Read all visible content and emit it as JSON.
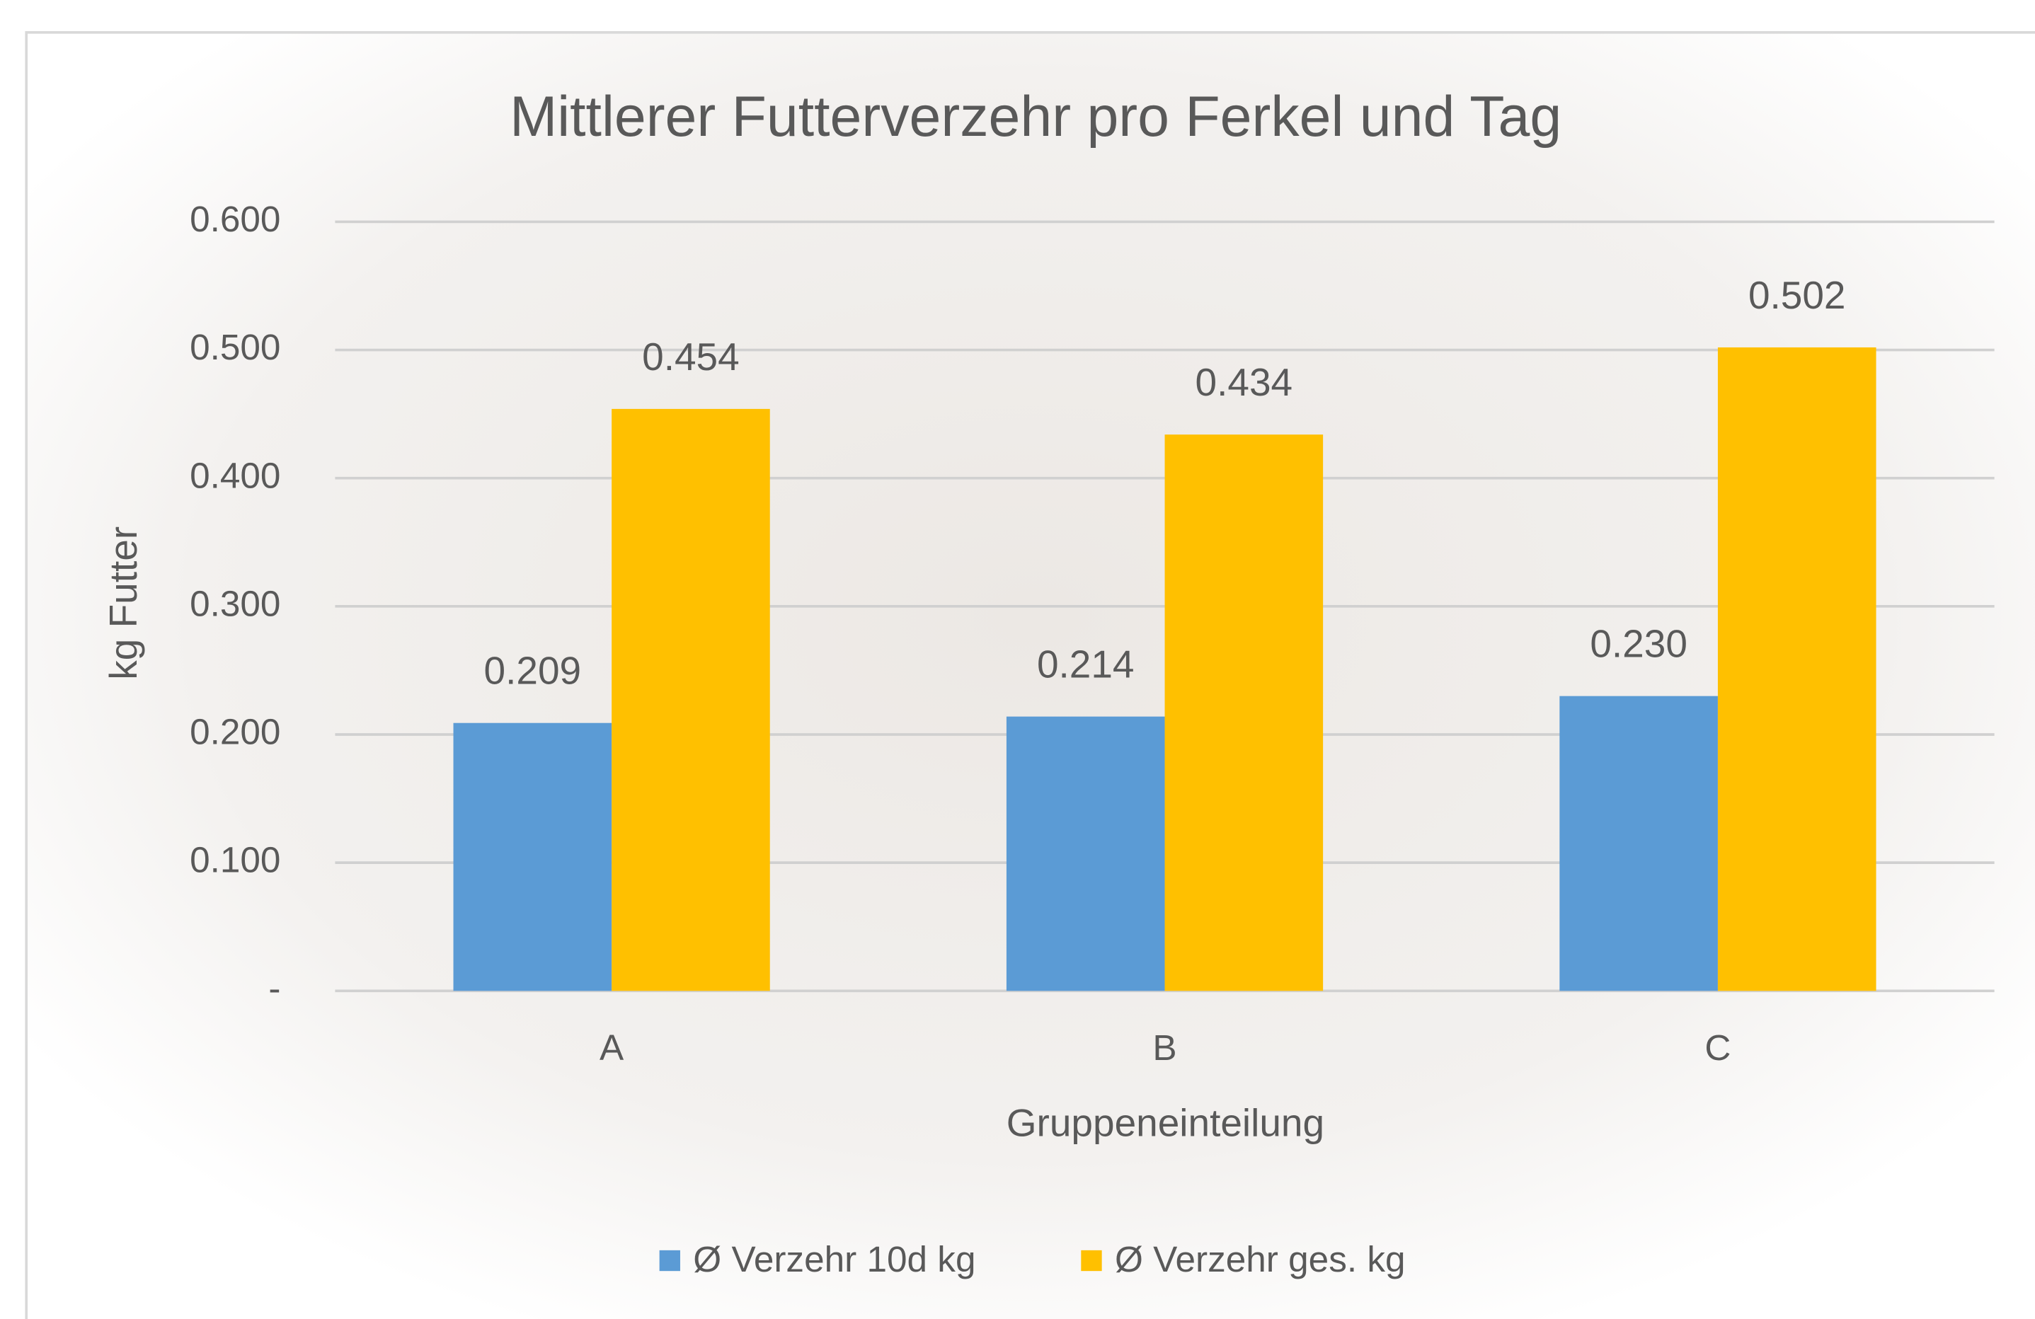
{
  "chart_data": {
    "type": "bar",
    "title": "Mittlerer Futterverzehr pro Ferkel und Tag",
    "x_label": "Gruppeneinteilung",
    "y_label": "kg Futter",
    "categories": [
      "A",
      "B",
      "C"
    ],
    "series": [
      {
        "name": "Ø Verzehr 10d kg",
        "color": "#5b9bd5",
        "values": [
          0.209,
          0.214,
          0.23
        ],
        "value_labels": [
          "0.209",
          "0.214",
          "0.230"
        ]
      },
      {
        "name": "Ø Verzehr ges. kg",
        "color": "#ffc000",
        "values": [
          0.454,
          0.434,
          0.502
        ],
        "value_labels": [
          "0.454",
          "0.434",
          "0.502"
        ]
      }
    ],
    "ylim": [
      0,
      0.6
    ],
    "yticks": [
      {
        "value": 0,
        "label": "-"
      },
      {
        "value": 0.1,
        "label": "0.100"
      },
      {
        "value": 0.2,
        "label": "0.200"
      },
      {
        "value": 0.3,
        "label": "0.300"
      },
      {
        "value": 0.4,
        "label": "0.400"
      },
      {
        "value": 0.5,
        "label": "0.500"
      },
      {
        "value": 0.6,
        "label": "0.600"
      }
    ],
    "grid": true,
    "legend_position": "bottom"
  }
}
